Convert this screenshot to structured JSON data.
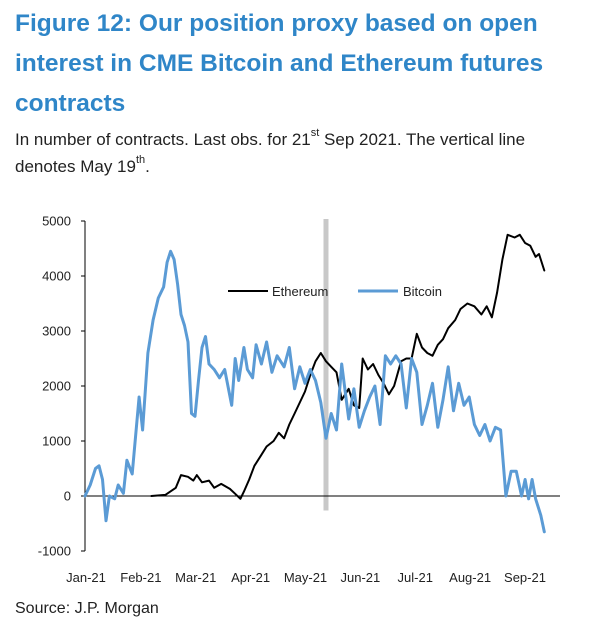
{
  "title": "Figure 12: Our position proxy based on open interest in CME Bitcoin and Ethereum futures contracts",
  "subtitle": {
    "part1": "In number of contracts. Last obs. for 21",
    "sup1": "st",
    "part2": " Sep 2021. The vertical line denotes May 19",
    "sup2": "th",
    "part3": "."
  },
  "source": "Source: J.P. Morgan",
  "colors": {
    "title": "#2f86c8",
    "ethereum": "#000000",
    "bitcoin": "#5b9bd5",
    "vline": "#c8c8c8"
  },
  "chart_data": {
    "type": "line",
    "x_tick_labels": [
      "Jan-21",
      "Feb-21",
      "Mar-21",
      "Apr-21",
      "May-21",
      "Jun-21",
      "Jul-21",
      "Aug-21",
      "Sep-21"
    ],
    "y_ticks": [
      5000,
      4000,
      3000,
      2000,
      1000,
      0,
      -1000
    ],
    "ylim": [
      -1000,
      5000
    ],
    "xlim": [
      "2021-01-01",
      "2021-09-30"
    ],
    "legend_position": "top-center",
    "vertical_line": "2021-05-19",
    "series": [
      {
        "name": "Ethereum",
        "points": [
          [
            "2021-02-08",
            0
          ],
          [
            "2021-02-16",
            20
          ],
          [
            "2021-02-22",
            150
          ],
          [
            "2021-02-25",
            380
          ],
          [
            "2021-03-01",
            350
          ],
          [
            "2021-03-04",
            280
          ],
          [
            "2021-03-06",
            380
          ],
          [
            "2021-03-09",
            250
          ],
          [
            "2021-03-13",
            280
          ],
          [
            "2021-03-16",
            150
          ],
          [
            "2021-03-20",
            220
          ],
          [
            "2021-03-25",
            130
          ],
          [
            "2021-03-28",
            40
          ],
          [
            "2021-03-31",
            -50
          ],
          [
            "2021-04-02",
            80
          ],
          [
            "2021-04-05",
            300
          ],
          [
            "2021-04-08",
            550
          ],
          [
            "2021-04-12",
            750
          ],
          [
            "2021-04-15",
            900
          ],
          [
            "2021-04-19",
            1000
          ],
          [
            "2021-04-22",
            1150
          ],
          [
            "2021-04-25",
            1050
          ],
          [
            "2021-04-28",
            1300
          ],
          [
            "2021-05-01",
            1500
          ],
          [
            "2021-05-04",
            1700
          ],
          [
            "2021-05-07",
            1900
          ],
          [
            "2021-05-10",
            2200
          ],
          [
            "2021-05-13",
            2450
          ],
          [
            "2021-05-16",
            2600
          ],
          [
            "2021-05-19",
            2450
          ],
          [
            "2021-05-22",
            2350
          ],
          [
            "2021-05-25",
            2250
          ],
          [
            "2021-05-28",
            1750
          ],
          [
            "2021-06-01",
            1950
          ],
          [
            "2021-06-04",
            1650
          ],
          [
            "2021-06-07",
            1600
          ],
          [
            "2021-06-09",
            2500
          ],
          [
            "2021-06-12",
            2300
          ],
          [
            "2021-06-15",
            2400
          ],
          [
            "2021-06-18",
            2200
          ],
          [
            "2021-06-21",
            2050
          ],
          [
            "2021-06-24",
            1850
          ],
          [
            "2021-06-27",
            2000
          ],
          [
            "2021-07-01",
            2450
          ],
          [
            "2021-07-04",
            2500
          ],
          [
            "2021-07-07",
            2500
          ],
          [
            "2021-07-10",
            2950
          ],
          [
            "2021-07-13",
            2700
          ],
          [
            "2021-07-16",
            2600
          ],
          [
            "2021-07-19",
            2550
          ],
          [
            "2021-07-22",
            2750
          ],
          [
            "2021-07-25",
            2850
          ],
          [
            "2021-07-28",
            3050
          ],
          [
            "2021-08-01",
            3200
          ],
          [
            "2021-08-04",
            3400
          ],
          [
            "2021-08-08",
            3500
          ],
          [
            "2021-08-12",
            3450
          ],
          [
            "2021-08-16",
            3300
          ],
          [
            "2021-08-19",
            3450
          ],
          [
            "2021-08-22",
            3250
          ],
          [
            "2021-08-25",
            3700
          ],
          [
            "2021-08-28",
            4300
          ],
          [
            "2021-08-31",
            4750
          ],
          [
            "2021-09-04",
            4700
          ],
          [
            "2021-09-07",
            4750
          ],
          [
            "2021-09-10",
            4600
          ],
          [
            "2021-09-13",
            4550
          ],
          [
            "2021-09-16",
            4350
          ],
          [
            "2021-09-18",
            4400
          ],
          [
            "2021-09-21",
            4100
          ]
        ]
      },
      {
        "name": "Bitcoin",
        "points": [
          [
            "2021-01-01",
            0
          ],
          [
            "2021-01-04",
            200
          ],
          [
            "2021-01-07",
            500
          ],
          [
            "2021-01-09",
            550
          ],
          [
            "2021-01-11",
            300
          ],
          [
            "2021-01-13",
            -450
          ],
          [
            "2021-01-15",
            0
          ],
          [
            "2021-01-18",
            -50
          ],
          [
            "2021-01-20",
            200
          ],
          [
            "2021-01-23",
            50
          ],
          [
            "2021-01-25",
            650
          ],
          [
            "2021-01-28",
            400
          ],
          [
            "2021-02-01",
            1800
          ],
          [
            "2021-02-03",
            1200
          ],
          [
            "2021-02-06",
            2600
          ],
          [
            "2021-02-09",
            3200
          ],
          [
            "2021-02-12",
            3600
          ],
          [
            "2021-02-15",
            3800
          ],
          [
            "2021-02-17",
            4250
          ],
          [
            "2021-02-19",
            4450
          ],
          [
            "2021-02-21",
            4300
          ],
          [
            "2021-02-23",
            3850
          ],
          [
            "2021-02-25",
            3300
          ],
          [
            "2021-02-27",
            3100
          ],
          [
            "2021-03-01",
            2800
          ],
          [
            "2021-03-03",
            1500
          ],
          [
            "2021-03-05",
            1450
          ],
          [
            "2021-03-07",
            2100
          ],
          [
            "2021-03-09",
            2700
          ],
          [
            "2021-03-11",
            2900
          ],
          [
            "2021-03-13",
            2400
          ],
          [
            "2021-03-16",
            2300
          ],
          [
            "2021-03-19",
            2150
          ],
          [
            "2021-03-22",
            2300
          ],
          [
            "2021-03-26",
            1650
          ],
          [
            "2021-03-28",
            2500
          ],
          [
            "2021-03-30",
            2100
          ],
          [
            "2021-04-02",
            2700
          ],
          [
            "2021-04-04",
            2300
          ],
          [
            "2021-04-07",
            2150
          ],
          [
            "2021-04-09",
            2750
          ],
          [
            "2021-04-12",
            2400
          ],
          [
            "2021-04-15",
            2800
          ],
          [
            "2021-04-18",
            2250
          ],
          [
            "2021-04-21",
            2550
          ],
          [
            "2021-04-25",
            2350
          ],
          [
            "2021-04-28",
            2700
          ],
          [
            "2021-05-01",
            1950
          ],
          [
            "2021-05-04",
            2350
          ],
          [
            "2021-05-07",
            2050
          ],
          [
            "2021-05-10",
            2300
          ],
          [
            "2021-05-13",
            2100
          ],
          [
            "2021-05-16",
            1700
          ],
          [
            "2021-05-19",
            1050
          ],
          [
            "2021-05-22",
            1500
          ],
          [
            "2021-05-25",
            1200
          ],
          [
            "2021-05-28",
            2400
          ],
          [
            "2021-06-01",
            1400
          ],
          [
            "2021-06-04",
            1950
          ],
          [
            "2021-06-07",
            1250
          ],
          [
            "2021-06-10",
            1550
          ],
          [
            "2021-06-13",
            1800
          ],
          [
            "2021-06-16",
            2000
          ],
          [
            "2021-06-19",
            1300
          ],
          [
            "2021-06-22",
            2550
          ],
          [
            "2021-06-25",
            2400
          ],
          [
            "2021-06-28",
            2550
          ],
          [
            "2021-07-01",
            2400
          ],
          [
            "2021-07-04",
            1600
          ],
          [
            "2021-07-07",
            2500
          ],
          [
            "2021-07-10",
            2250
          ],
          [
            "2021-07-13",
            1300
          ],
          [
            "2021-07-16",
            1650
          ],
          [
            "2021-07-19",
            2050
          ],
          [
            "2021-07-22",
            1250
          ],
          [
            "2021-07-25",
            1750
          ],
          [
            "2021-07-28",
            2350
          ],
          [
            "2021-07-31",
            1550
          ],
          [
            "2021-08-03",
            2050
          ],
          [
            "2021-08-06",
            1650
          ],
          [
            "2021-08-09",
            1800
          ],
          [
            "2021-08-12",
            1300
          ],
          [
            "2021-08-15",
            1100
          ],
          [
            "2021-08-18",
            1300
          ],
          [
            "2021-08-21",
            1000
          ],
          [
            "2021-08-24",
            1250
          ],
          [
            "2021-08-27",
            1200
          ],
          [
            "2021-08-30",
            0
          ],
          [
            "2021-09-02",
            450
          ],
          [
            "2021-09-05",
            450
          ],
          [
            "2021-09-08",
            0
          ],
          [
            "2021-09-10",
            300
          ],
          [
            "2021-09-12",
            -50
          ],
          [
            "2021-09-14",
            300
          ],
          [
            "2021-09-16",
            -50
          ],
          [
            "2021-09-19",
            -350
          ],
          [
            "2021-09-21",
            -650
          ]
        ]
      }
    ]
  }
}
